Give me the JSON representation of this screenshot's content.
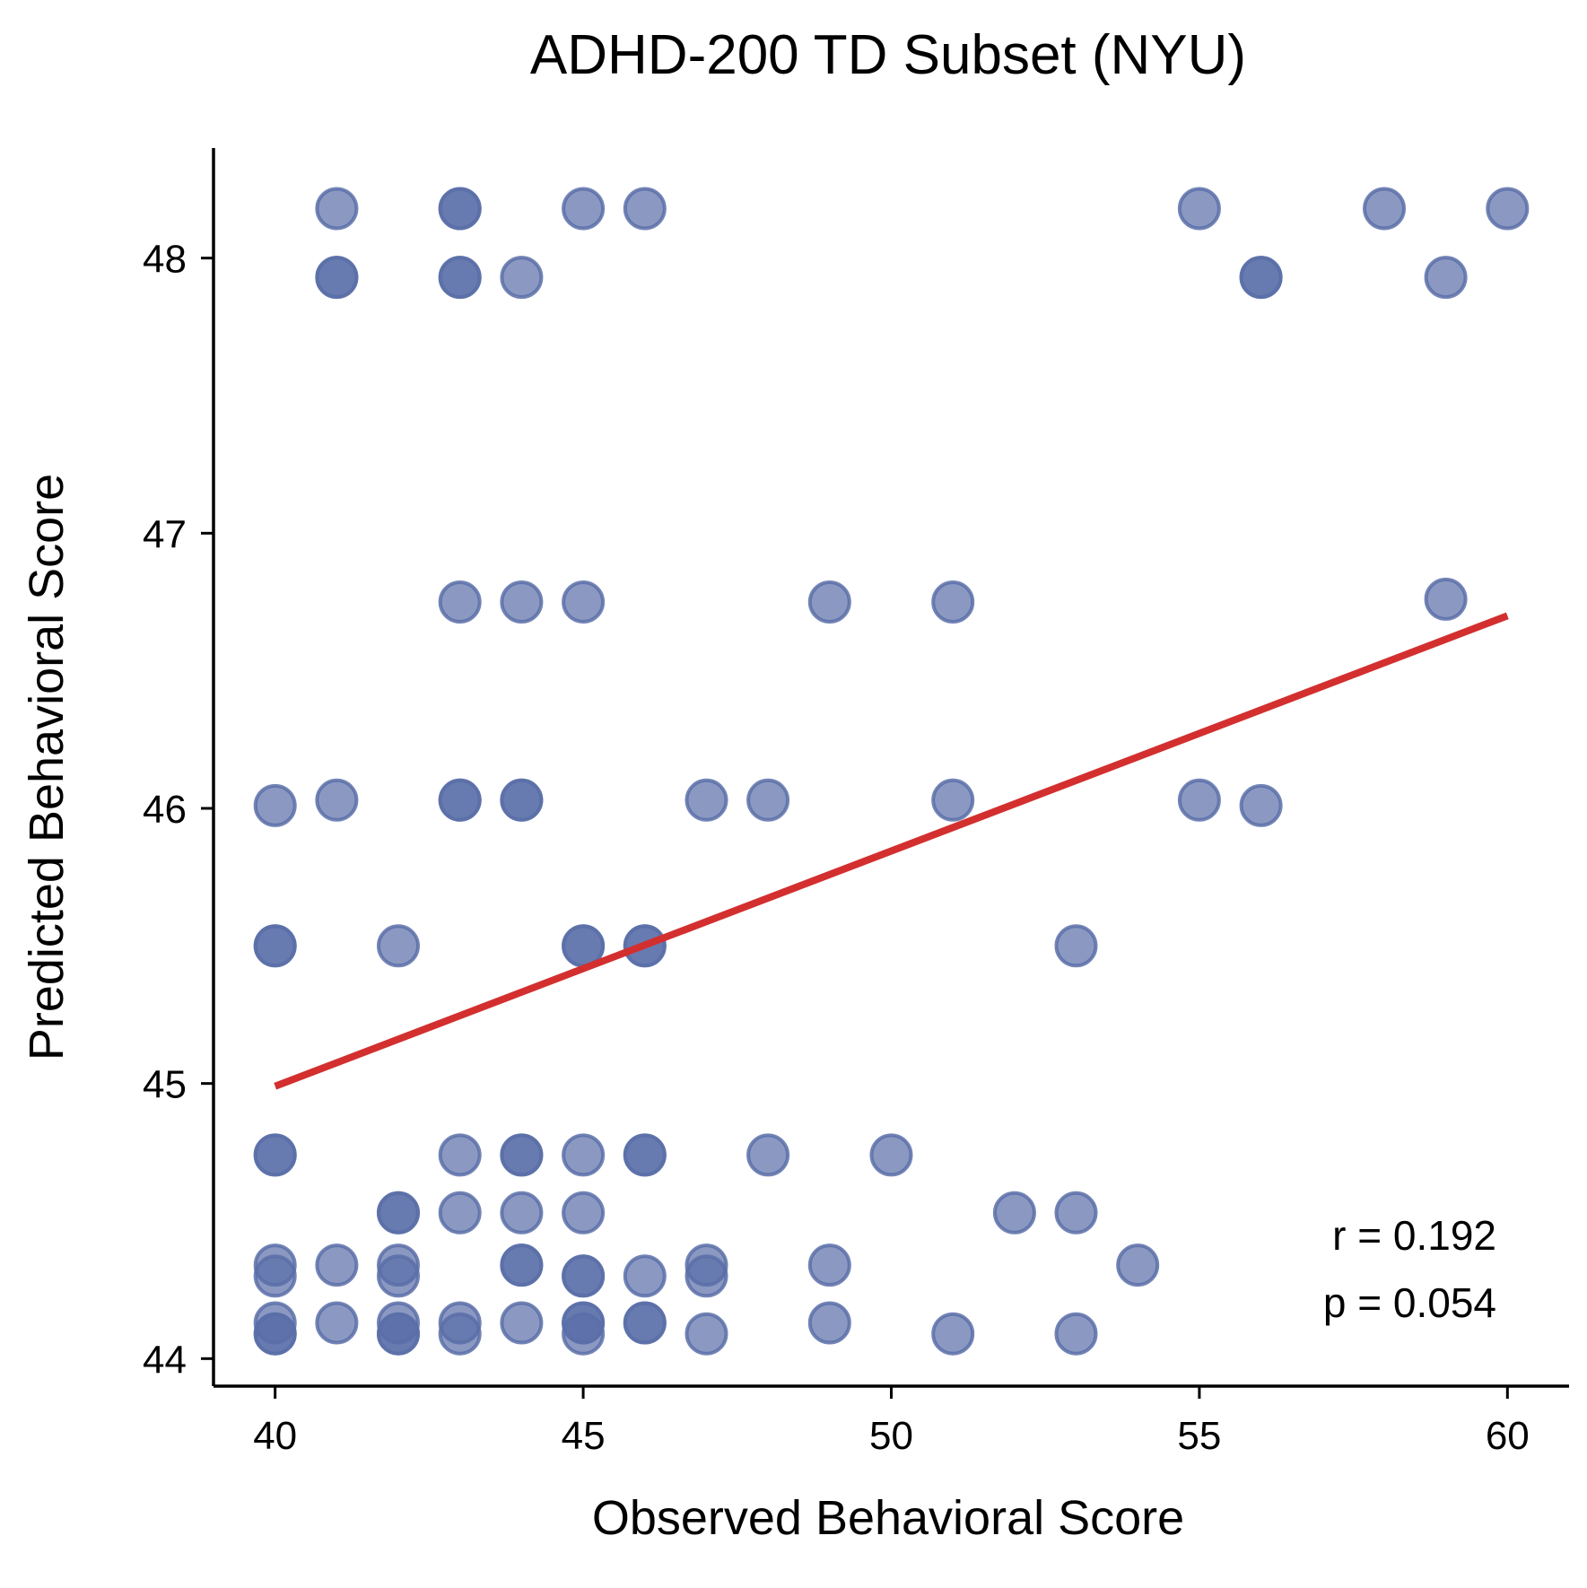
{
  "chart_data": {
    "type": "scatter",
    "title": "ADHD-200 TD Subset (NYU)",
    "xlabel": "Observed Behavioral Score",
    "ylabel": "Predicted Behavioral Score",
    "xlim": [
      39,
      61
    ],
    "ylim": [
      43.9,
      48.4
    ],
    "xticks": [
      40,
      45,
      50,
      55,
      60
    ],
    "yticks": [
      44,
      45,
      46,
      47,
      48
    ],
    "grid": false,
    "point_color": "#5a6ea8",
    "line_color": "#d32f2f",
    "points": [
      [
        41,
        48.18
      ],
      [
        43,
        48.18
      ],
      [
        43,
        48.18
      ],
      [
        45,
        48.18
      ],
      [
        46,
        48.18
      ],
      [
        55,
        48.18
      ],
      [
        58,
        48.18
      ],
      [
        60,
        48.18
      ],
      [
        41,
        47.93
      ],
      [
        41,
        47.93
      ],
      [
        43,
        47.93
      ],
      [
        43,
        47.93
      ],
      [
        44,
        47.93
      ],
      [
        56,
        47.93
      ],
      [
        56,
        47.93
      ],
      [
        59,
        47.93
      ],
      [
        43,
        46.75
      ],
      [
        44,
        46.75
      ],
      [
        45,
        46.75
      ],
      [
        49,
        46.75
      ],
      [
        51,
        46.75
      ],
      [
        59,
        46.76
      ],
      [
        40,
        46.01
      ],
      [
        41,
        46.03
      ],
      [
        43,
        46.03
      ],
      [
        43,
        46.03
      ],
      [
        44,
        46.03
      ],
      [
        44,
        46.03
      ],
      [
        47,
        46.03
      ],
      [
        48,
        46.03
      ],
      [
        51,
        46.03
      ],
      [
        55,
        46.03
      ],
      [
        56,
        46.01
      ],
      [
        40,
        45.5
      ],
      [
        40,
        45.5
      ],
      [
        42,
        45.5
      ],
      [
        45,
        45.5
      ],
      [
        45,
        45.5
      ],
      [
        46,
        45.5
      ],
      [
        46,
        45.5
      ],
      [
        53,
        45.5
      ],
      [
        40,
        44.74
      ],
      [
        40,
        44.74
      ],
      [
        43,
        44.74
      ],
      [
        44,
        44.74
      ],
      [
        44,
        44.74
      ],
      [
        45,
        44.74
      ],
      [
        46,
        44.74
      ],
      [
        46,
        44.74
      ],
      [
        48,
        44.74
      ],
      [
        50,
        44.74
      ],
      [
        42,
        44.53
      ],
      [
        42,
        44.53
      ],
      [
        43,
        44.53
      ],
      [
        44,
        44.53
      ],
      [
        45,
        44.53
      ],
      [
        52,
        44.53
      ],
      [
        53,
        44.53
      ],
      [
        40,
        44.34
      ],
      [
        40,
        44.3
      ],
      [
        41,
        44.34
      ],
      [
        42,
        44.34
      ],
      [
        42,
        44.3
      ],
      [
        44,
        44.34
      ],
      [
        44,
        44.34
      ],
      [
        45,
        44.3
      ],
      [
        45,
        44.3
      ],
      [
        46,
        44.3
      ],
      [
        47,
        44.34
      ],
      [
        47,
        44.3
      ],
      [
        49,
        44.34
      ],
      [
        54,
        44.34
      ],
      [
        40,
        44.13
      ],
      [
        40,
        44.09
      ],
      [
        40,
        44.09
      ],
      [
        41,
        44.13
      ],
      [
        42,
        44.13
      ],
      [
        42,
        44.09
      ],
      [
        42,
        44.09
      ],
      [
        43,
        44.13
      ],
      [
        43,
        44.09
      ],
      [
        44,
        44.13
      ],
      [
        45,
        44.13
      ],
      [
        45,
        44.13
      ],
      [
        45,
        44.09
      ],
      [
        46,
        44.13
      ],
      [
        46,
        44.13
      ],
      [
        47,
        44.09
      ],
      [
        49,
        44.13
      ],
      [
        51,
        44.09
      ],
      [
        53,
        44.09
      ]
    ],
    "fit_line": {
      "x": [
        40,
        60
      ],
      "y": [
        44.99,
        46.7
      ]
    },
    "annotations": {
      "r_text": "r = 0.192",
      "p_text": "p = 0.054"
    }
  }
}
